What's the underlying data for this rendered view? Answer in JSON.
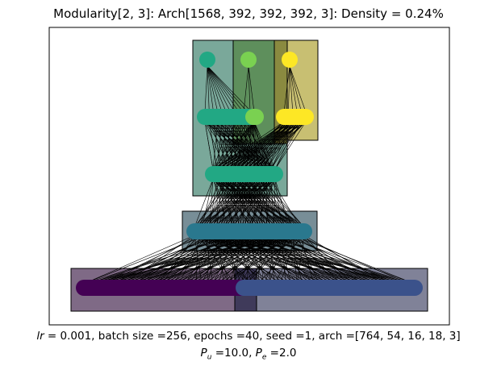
{
  "title": "Modularity[2, 3]: Arch[1568, 392, 392, 392, 3]: Density = 0.24%",
  "caption": {
    "lr_symbol": "lr",
    "line1_rest": " =  0.001, batch size =256, epochs =40, seed =1, arch =[764, 54, 16, 18, 3]",
    "pu_symbol": "P",
    "pu_sub": "u",
    "pu_value": " =10.0, ",
    "pe_symbol": "P",
    "pe_sub": "e",
    "pe_value": " =2.0"
  },
  "colors": {
    "module_input_a": "#440154",
    "module_input_b": "#3b528b",
    "module_h1": "#2a788e",
    "module_h2": "#22a884",
    "module_out_a": "#22a884",
    "module_out_b": "#7ad151",
    "module_out_c": "#fde725"
  }
}
